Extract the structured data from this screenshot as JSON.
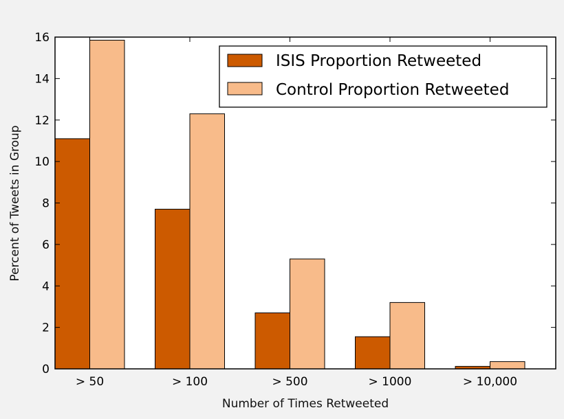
{
  "chart_data": {
    "type": "bar",
    "title": "",
    "xlabel": "Number of Times Retweeted",
    "ylabel": "Percent of Tweets in Group",
    "categories": [
      "> 50",
      "> 100",
      "> 500",
      "> 1000",
      "> 10,000"
    ],
    "series": [
      {
        "name": "ISIS Proportion Retweeted",
        "values": [
          11.1,
          7.7,
          2.7,
          1.55,
          0.12
        ],
        "color": "#cc5a00"
      },
      {
        "name": "Control Proportion Retweeted",
        "values": [
          15.85,
          12.3,
          5.3,
          3.2,
          0.35
        ],
        "color": "#f8bb8a"
      }
    ],
    "ylim": [
      0,
      16
    ],
    "yticks": [
      0,
      2,
      4,
      6,
      8,
      10,
      12,
      14,
      16
    ],
    "grid": false,
    "legend_position": "top-right"
  }
}
